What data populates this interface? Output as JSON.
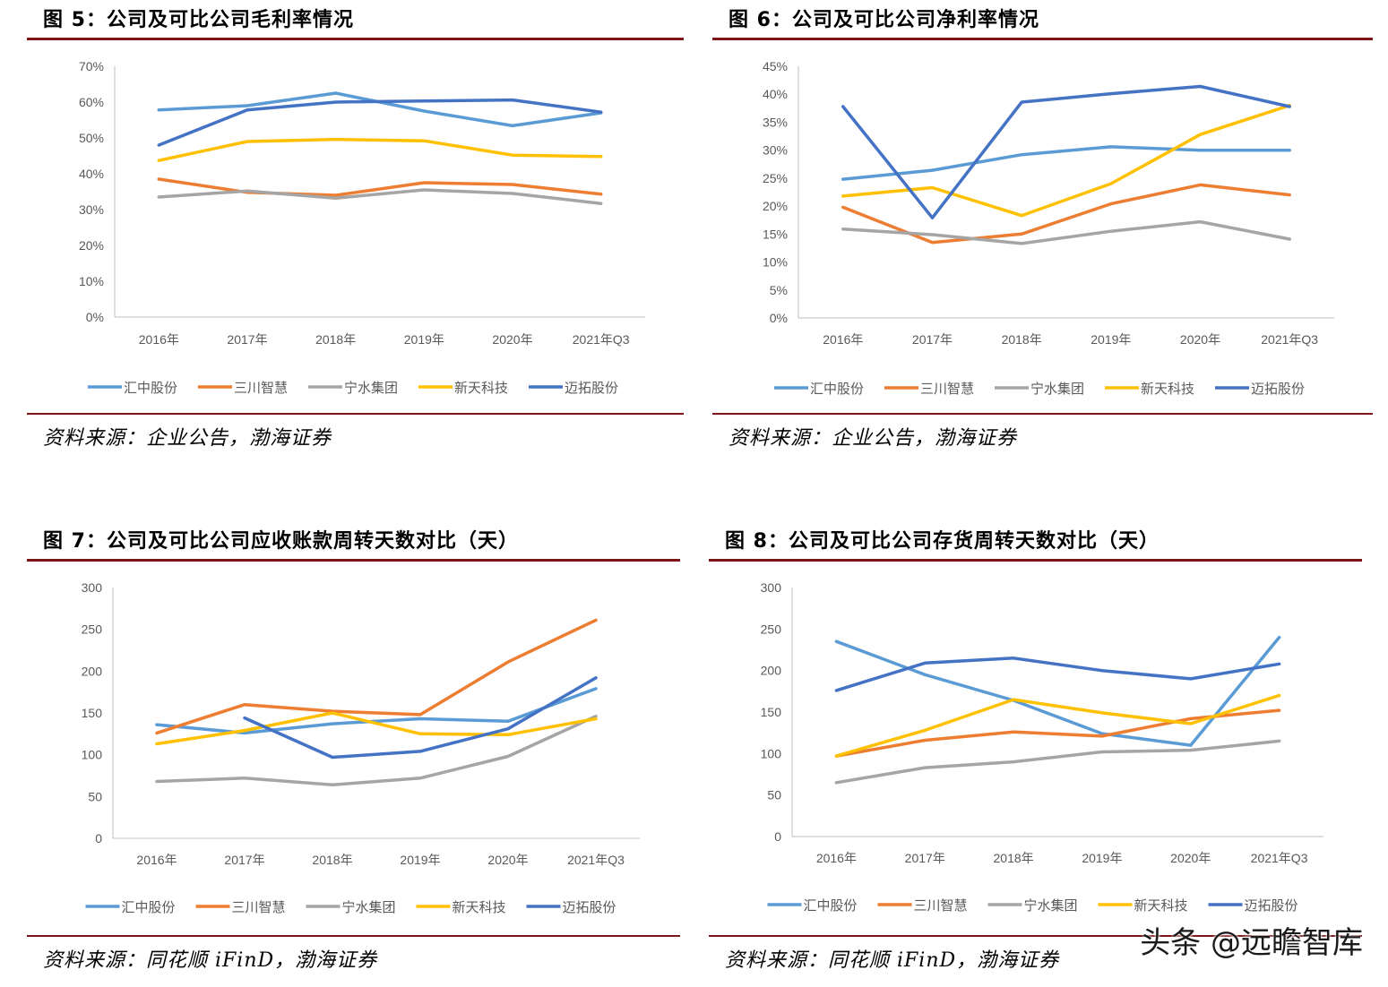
{
  "colors": {
    "汇中股份": "#5b9bd5",
    "三川智慧": "#ed7d31",
    "宁水集团": "#a5a5a5",
    "新天科技": "#ffc000",
    "迈拓股份": "#4472c4",
    "rule": "#7b1517",
    "axis": "#bfbfbf"
  },
  "watermark": "头条 @远瞻智库",
  "chart_data": [
    {
      "type": "line",
      "title": "图 5：公司及可比公司毛利率情况",
      "source": "资料来源：企业公告，渤海证券",
      "categories": [
        "2016年",
        "2017年",
        "2018年",
        "2019年",
        "2020年",
        "2021年Q3"
      ],
      "ylim": [
        0,
        70
      ],
      "yticks": [
        "0%",
        "10%",
        "20%",
        "30%",
        "40%",
        "50%",
        "60%",
        "70%"
      ],
      "legend_position": "bottom",
      "series": [
        {
          "name": "汇中股份",
          "values": [
            57.8,
            59.0,
            62.5,
            57.5,
            53.4,
            57.0
          ]
        },
        {
          "name": "三川智慧",
          "values": [
            38.5,
            34.8,
            34.0,
            37.5,
            37.0,
            34.3
          ]
        },
        {
          "name": "宁水集团",
          "values": [
            33.5,
            35.2,
            33.2,
            35.5,
            34.5,
            31.7
          ]
        },
        {
          "name": "新天科技",
          "values": [
            43.7,
            49.0,
            49.6,
            49.2,
            45.2,
            44.8
          ]
        },
        {
          "name": "迈拓股份",
          "values": [
            48.0,
            57.8,
            60.0,
            60.3,
            60.6,
            57.2
          ]
        }
      ]
    },
    {
      "type": "line",
      "title": "图 6：公司及可比公司净利率情况",
      "source": "资料来源：企业公告，渤海证券",
      "categories": [
        "2016年",
        "2017年",
        "2018年",
        "2019年",
        "2020年",
        "2021年Q3"
      ],
      "ylim": [
        0,
        45
      ],
      "yticks": [
        "0%",
        "5%",
        "10%",
        "15%",
        "20%",
        "25%",
        "30%",
        "35%",
        "40%",
        "45%"
      ],
      "legend_position": "bottom",
      "series": [
        {
          "name": "汇中股份",
          "values": [
            24.8,
            26.4,
            29.2,
            30.6,
            30.0,
            30.0
          ]
        },
        {
          "name": "三川智慧",
          "values": [
            19.8,
            13.5,
            15.0,
            20.4,
            23.8,
            22.0
          ]
        },
        {
          "name": "宁水集团",
          "values": [
            15.9,
            14.9,
            13.3,
            15.5,
            17.2,
            14.1
          ]
        },
        {
          "name": "新天科技",
          "values": [
            21.8,
            23.3,
            18.3,
            24.0,
            32.8,
            38.0
          ]
        },
        {
          "name": "迈拓股份",
          "values": [
            37.8,
            17.9,
            38.6,
            40.1,
            41.4,
            37.8
          ]
        }
      ]
    },
    {
      "type": "line",
      "title": "图 7：公司及可比公司应收账款周转天数对比（天）",
      "source": "资料来源：同花顺 iFinD，渤海证券",
      "categories": [
        "2016年",
        "2017年",
        "2018年",
        "2019年",
        "2020年",
        "2021年Q3"
      ],
      "ylim": [
        0,
        300
      ],
      "yticks": [
        "0",
        "50",
        "100",
        "150",
        "200",
        "250",
        "300"
      ],
      "legend_position": "bottom",
      "series": [
        {
          "name": "汇中股份",
          "values": [
            136,
            126,
            137,
            143,
            140,
            179
          ]
        },
        {
          "name": "三川智慧",
          "values": [
            126,
            160,
            152,
            148,
            211,
            261
          ]
        },
        {
          "name": "宁水集团",
          "values": [
            68,
            72,
            64,
            72,
            98,
            146
          ]
        },
        {
          "name": "新天科技",
          "values": [
            113,
            129,
            150,
            125,
            124,
            143
          ]
        },
        {
          "name": "迈拓股份",
          "values": [
            null,
            144,
            97,
            104,
            131,
            192
          ]
        }
      ]
    },
    {
      "type": "line",
      "title": "图 8：公司及可比公司存货周转天数对比（天）",
      "source": "资料来源：同花顺 iFinD，渤海证券",
      "categories": [
        "2016年",
        "2017年",
        "2018年",
        "2019年",
        "2020年",
        "2021年Q3"
      ],
      "ylim": [
        0,
        300
      ],
      "yticks": [
        "0",
        "50",
        "100",
        "150",
        "200",
        "250",
        "300"
      ],
      "legend_position": "bottom",
      "series": [
        {
          "name": "汇中股份",
          "values": [
            235,
            195,
            164,
            124,
            110,
            240
          ]
        },
        {
          "name": "三川智慧",
          "values": [
            97,
            116,
            126,
            121,
            142,
            152
          ]
        },
        {
          "name": "宁水集团",
          "values": [
            65,
            83,
            90,
            102,
            104,
            115
          ]
        },
        {
          "name": "新天科技",
          "values": [
            97,
            128,
            165,
            149,
            136,
            170
          ]
        },
        {
          "name": "迈拓股份",
          "values": [
            176,
            209,
            215,
            200,
            190,
            208
          ]
        }
      ]
    }
  ]
}
